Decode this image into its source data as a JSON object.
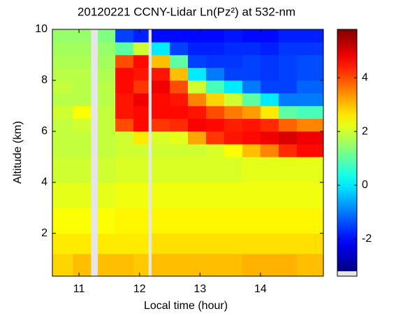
{
  "chart_data": {
    "type": "heatmap",
    "title": "20120221 CCNY-Lidar Ln(Pz²) at 532-nm",
    "xlabel": "Local time (hour)",
    "ylabel": "Altitude (km)",
    "colormap": "jet",
    "missing_color": "#e6e6e6",
    "xlim": [
      10.56,
      15.04
    ],
    "ylim": [
      0.32,
      10
    ],
    "xticks": [
      11,
      12,
      13,
      14
    ],
    "yticks": [
      2,
      4,
      6,
      8,
      10
    ],
    "clim": [
      -3.2,
      5.8
    ],
    "cticks": [
      -2,
      0,
      2,
      4
    ],
    "x_edges": [
      10.56,
      10.9,
      11.2,
      11.31,
      11.6,
      11.9,
      12.15,
      12.2,
      12.5,
      12.8,
      13.1,
      13.4,
      13.7,
      14.0,
      14.3,
      14.6,
      15.04
    ],
    "y_edges": [
      0.32,
      1.2,
      2,
      3,
      4,
      5,
      5.5,
      6,
      6.5,
      7,
      7.5,
      8,
      8.5,
      9,
      9.5,
      10
    ],
    "z": [
      [
        2.8,
        3.0,
        null,
        3.0,
        3.0,
        2.9,
        null,
        3.0,
        3.0,
        3.0,
        3.0,
        3.0,
        3.1,
        3.1,
        3.1,
        3.0
      ],
      [
        2.6,
        2.6,
        null,
        2.6,
        2.6,
        2.6,
        null,
        2.7,
        2.7,
        2.7,
        2.7,
        2.7,
        2.7,
        2.7,
        2.7,
        2.7
      ],
      [
        2.4,
        2.4,
        null,
        2.4,
        2.5,
        2.5,
        null,
        2.5,
        2.5,
        2.5,
        2.5,
        2.5,
        2.5,
        2.5,
        2.5,
        2.5
      ],
      [
        2.2,
        2.2,
        null,
        2.2,
        2.3,
        2.3,
        null,
        2.3,
        2.3,
        2.3,
        2.3,
        2.3,
        2.3,
        2.3,
        2.3,
        2.3
      ],
      [
        2.0,
        2.0,
        null,
        2.0,
        2.1,
        2.1,
        null,
        2.1,
        2.1,
        2.1,
        2.1,
        2.1,
        2.2,
        2.2,
        2.2,
        2.2
      ],
      [
        1.9,
        1.9,
        null,
        1.9,
        2.0,
        2.0,
        null,
        2.0,
        2.0,
        2.0,
        2.1,
        2.4,
        3.0,
        3.5,
        4.3,
        4.6
      ],
      [
        1.9,
        1.9,
        null,
        1.9,
        2.0,
        2.6,
        null,
        2.1,
        2.2,
        3.2,
        4.2,
        4.5,
        4.6,
        4.8,
        5.0,
        4.8
      ],
      [
        1.9,
        2.0,
        null,
        1.9,
        4.0,
        4.6,
        null,
        4.2,
        4.3,
        4.7,
        4.6,
        4.4,
        4.5,
        4.3,
        3.8,
        3.5
      ],
      [
        2.0,
        2.4,
        null,
        1.9,
        4.5,
        4.6,
        null,
        4.6,
        4.6,
        4.5,
        4.0,
        3.6,
        3.3,
        2.6,
        1.0,
        0.8
      ],
      [
        1.8,
        1.8,
        null,
        1.8,
        4.5,
        4.8,
        null,
        4.6,
        4.5,
        3.5,
        2.8,
        2.0,
        1.0,
        0.0,
        -1.0,
        -1.0
      ],
      [
        1.9,
        1.8,
        null,
        1.8,
        4.6,
        4.2,
        null,
        4.8,
        4.0,
        2.0,
        0.8,
        0.0,
        -1.0,
        -1.5,
        -1.5,
        -1.2
      ],
      [
        1.8,
        1.8,
        null,
        1.7,
        4.6,
        4.5,
        null,
        4.5,
        3.0,
        0.0,
        -1.0,
        -1.5,
        -1.5,
        -1.6,
        -1.5,
        -1.4
      ],
      [
        1.7,
        1.7,
        null,
        1.6,
        4.0,
        4.6,
        null,
        3.0,
        1.0,
        -1.5,
        -1.6,
        -1.6,
        -1.5,
        -1.6,
        -1.5,
        -1.4
      ],
      [
        1.6,
        1.6,
        null,
        1.5,
        1.0,
        2.0,
        null,
        0.0,
        -1.5,
        -1.8,
        -1.8,
        -1.7,
        -1.7,
        -1.8,
        -1.6,
        -1.6
      ],
      [
        1.5,
        1.5,
        null,
        1.3,
        -1.5,
        -1.8,
        null,
        -2.0,
        -2.0,
        -2.0,
        -2.0,
        -1.9,
        -2.0,
        -2.0,
        -1.8,
        -1.8
      ]
    ]
  }
}
